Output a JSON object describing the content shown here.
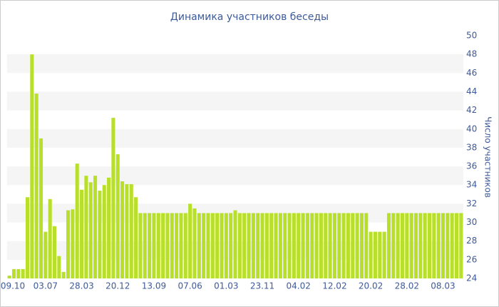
{
  "chart_data": {
    "type": "bar",
    "title": "Динамика участников беседы",
    "y_label": "Число участников",
    "categories": [
      "09.10",
      null,
      null,
      null,
      null,
      null,
      null,
      null,
      "03.07",
      null,
      null,
      null,
      null,
      null,
      null,
      null,
      "28.03",
      null,
      null,
      null,
      null,
      null,
      null,
      null,
      "20.12",
      null,
      null,
      null,
      null,
      null,
      null,
      null,
      "13.09",
      null,
      null,
      null,
      null,
      null,
      null,
      null,
      "07.06",
      null,
      null,
      null,
      null,
      null,
      null,
      null,
      "01.03",
      null,
      null,
      null,
      null,
      null,
      null,
      null,
      "23.11",
      null,
      null,
      null,
      null,
      null,
      null,
      null,
      "04.02",
      null,
      null,
      null,
      null,
      null,
      null,
      null,
      "12.02",
      null,
      null,
      null,
      null,
      null,
      null,
      null,
      "20.02",
      null,
      null,
      null,
      null,
      null,
      null,
      null,
      "28.02",
      null,
      null,
      null,
      null,
      null,
      null,
      null,
      "08.03",
      null,
      null,
      null,
      null
    ],
    "values": [
      24.3,
      25,
      25,
      25,
      32.7,
      48,
      43.8,
      39,
      29,
      32.5,
      29.6,
      26.4,
      24.7,
      31.3,
      31.4,
      36.3,
      33.5,
      35,
      34.3,
      35,
      33.4,
      34,
      34.8,
      41.2,
      37.3,
      34.4,
      34.1,
      34.1,
      32.7,
      31,
      31,
      31,
      31,
      31,
      31,
      31,
      31,
      31,
      31,
      31,
      32,
      31.5,
      31,
      31,
      31,
      31,
      31,
      31,
      31,
      31,
      31.3,
      31,
      31,
      31,
      31,
      31,
      31,
      31,
      31,
      31,
      31,
      31,
      31,
      31,
      31,
      31,
      31,
      31,
      31,
      31,
      31,
      31,
      31,
      31,
      31,
      31,
      31,
      31,
      31,
      31,
      29,
      29,
      29,
      29,
      31,
      31,
      31,
      31,
      31,
      31,
      31,
      31,
      31,
      31,
      31,
      31,
      31,
      31,
      31,
      31,
      31
    ],
    "color": "#b8e02a",
    "ylim": [
      24,
      50
    ],
    "yticks": [
      24,
      26,
      28,
      30,
      32,
      34,
      36,
      38,
      40,
      42,
      44,
      46,
      48,
      50
    ],
    "y_axis_side": "right",
    "grid": "bands"
  }
}
